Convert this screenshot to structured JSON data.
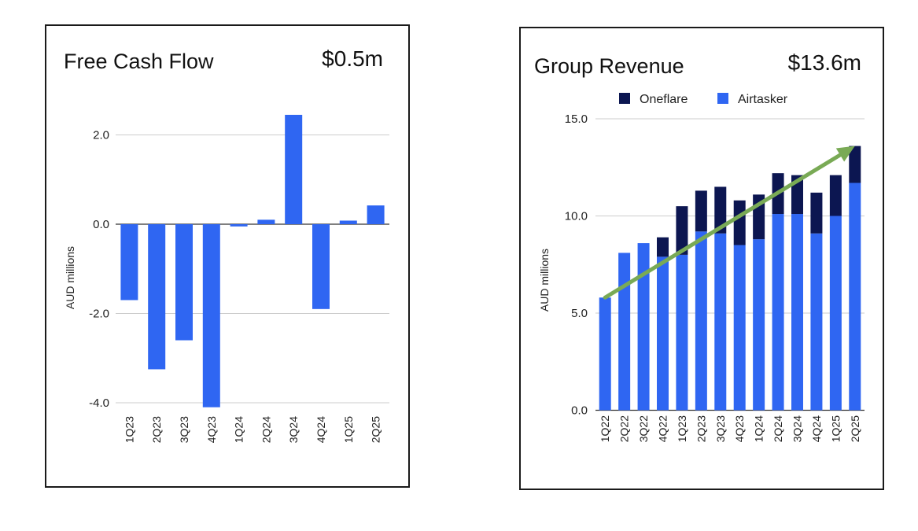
{
  "colors": {
    "primary_bar": "#2f66f2",
    "secondary_bar": "#0c1651",
    "gridline": "#cccccc",
    "zero_line": "#333333",
    "trend_arrow": "#79aa55"
  },
  "chart_data": [
    {
      "type": "bar",
      "title": "Free Cash Flow",
      "headline_value": "$0.5m",
      "ylabel": "AUD millions",
      "xlabel": "",
      "ylim": [
        -4.0,
        3.0
      ],
      "yticks": [
        -4.0,
        -2.0,
        0.0,
        2.0
      ],
      "ytick_labels": [
        "-4.0",
        "-2.0",
        "0.0",
        "2.0"
      ],
      "grid": true,
      "categories": [
        "1Q23",
        "2Q23",
        "3Q23",
        "4Q23",
        "1Q24",
        "2Q24",
        "3Q24",
        "4Q24",
        "1Q25",
        "2Q25"
      ],
      "values": [
        -1.7,
        -3.25,
        -2.6,
        -4.1,
        -0.05,
        0.1,
        2.45,
        -1.9,
        0.08,
        0.42
      ]
    },
    {
      "type": "bar",
      "stacked": true,
      "title": "Group Revenue",
      "headline_value": "$13.6m",
      "ylabel": "AUD millions",
      "xlabel": "",
      "ylim": [
        0.0,
        15.0
      ],
      "yticks": [
        0.0,
        5.0,
        10.0,
        15.0
      ],
      "ytick_labels": [
        "0.0",
        "5.0",
        "10.0",
        "15.0"
      ],
      "grid": true,
      "legend_position": "top",
      "trend_arrow": true,
      "categories": [
        "1Q22",
        "2Q22",
        "3Q22",
        "4Q22",
        "1Q23",
        "2Q23",
        "3Q23",
        "4Q23",
        "1Q24",
        "2Q24",
        "3Q24",
        "4Q24",
        "1Q25",
        "2Q25"
      ],
      "series": [
        {
          "name": "Airtasker",
          "values": [
            5.8,
            8.1,
            8.6,
            7.9,
            8.0,
            9.2,
            9.1,
            8.5,
            8.8,
            10.1,
            10.1,
            9.1,
            10.0,
            11.7
          ]
        },
        {
          "name": "Oneflare",
          "values": [
            0.0,
            0.0,
            0.0,
            1.0,
            2.5,
            2.1,
            2.4,
            2.3,
            2.3,
            2.1,
            2.0,
            2.1,
            2.1,
            1.9
          ]
        }
      ],
      "legend_order": [
        "Oneflare",
        "Airtasker"
      ]
    }
  ]
}
